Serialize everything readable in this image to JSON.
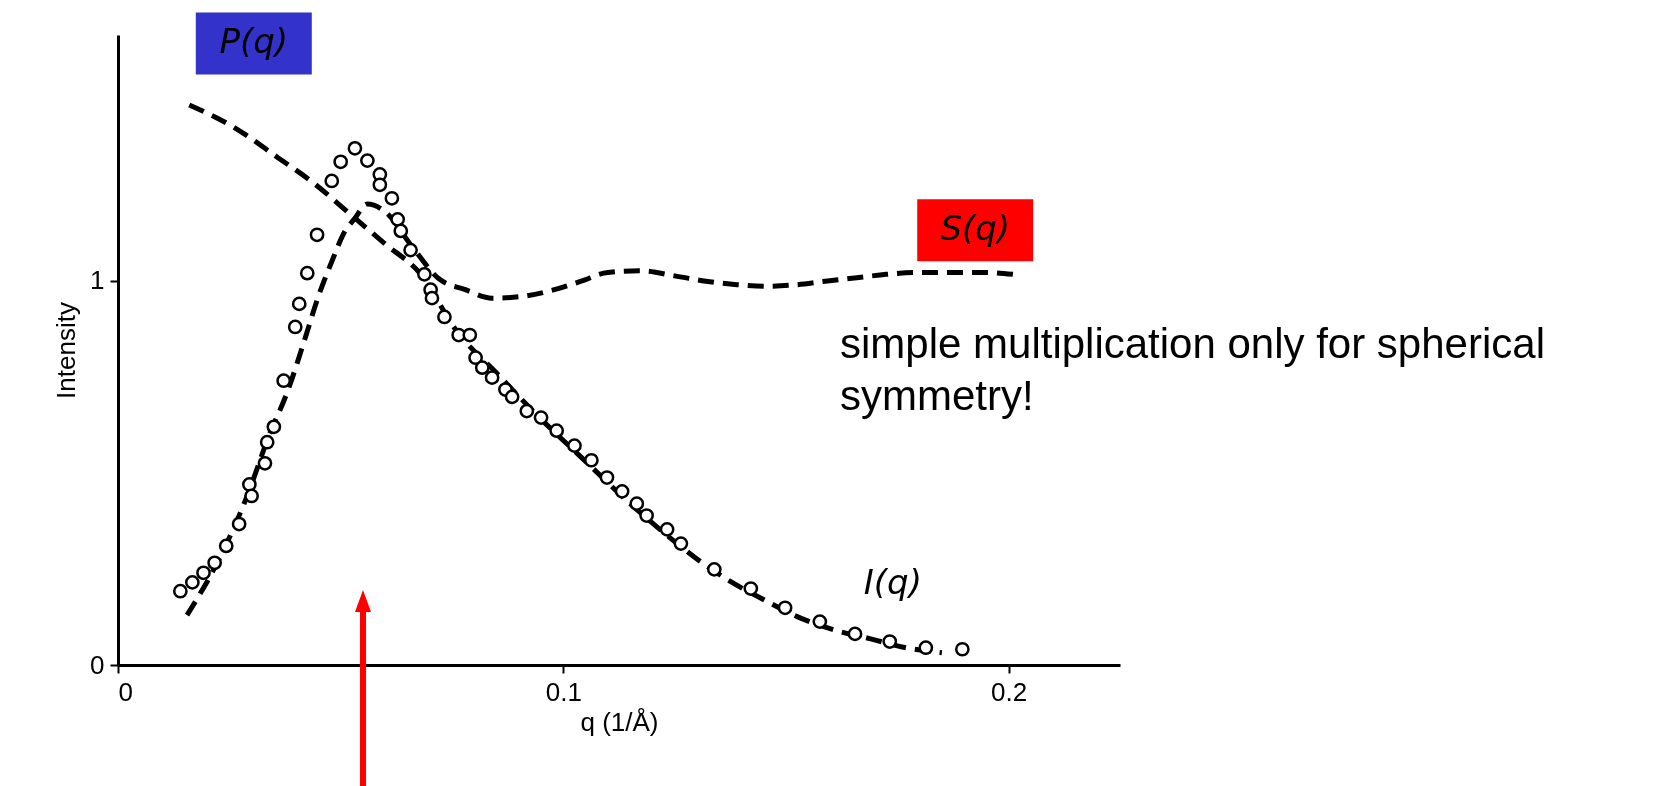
{
  "chart_data": {
    "type": "line",
    "xlabel": "q (1/Å)",
    "ylabel": "Intensity",
    "xlim": [
      0,
      0.225
    ],
    "ylim": [
      0,
      1.64
    ],
    "xticks": [
      0,
      0.1,
      0.2
    ],
    "yticks": [
      0,
      1
    ],
    "grid": false,
    "line_style": "dashed",
    "annotations": [
      "simple multiplication only for spherical symmetry!"
    ],
    "series": [
      {
        "name": "P(q)",
        "color": "#000000",
        "x": [
          0.016,
          0.026,
          0.036,
          0.044,
          0.052,
          0.06,
          0.068,
          0.076,
          0.085,
          0.095,
          0.105,
          0.115,
          0.122,
          0.13,
          0.1376,
          0.1455,
          0.1533,
          0.1612,
          0.169,
          0.1769,
          0.185
        ],
        "values": [
          1.458,
          1.4,
          1.32,
          1.254,
          1.175,
          1.096,
          1.017,
          0.87,
          0.76,
          0.64,
          0.53,
          0.42,
          0.35,
          0.276,
          0.217,
          0.167,
          0.122,
          0.09,
          0.068,
          0.045,
          0.032
        ]
      },
      {
        "name": "S(q)",
        "color": "#000000",
        "x": [
          0.0155,
          0.022,
          0.029,
          0.034,
          0.038,
          0.042,
          0.045,
          0.048,
          0.051,
          0.053,
          0.056,
          0.06,
          0.066,
          0.072,
          0.078,
          0.084,
          0.091,
          0.098,
          0.104,
          0.11,
          0.1176,
          0.125,
          0.132,
          0.139,
          0.1455,
          0.1525,
          0.1588,
          0.1659,
          0.1725,
          0.18,
          0.187,
          0.194,
          0.201
        ],
        "values": [
          0.13,
          0.26,
          0.44,
          0.6,
          0.71,
          0.85,
          0.96,
          1.05,
          1.13,
          1.16,
          1.2,
          1.18,
          1.09,
          1.006,
          0.977,
          0.955,
          0.96,
          0.977,
          0.999,
          1.022,
          1.026,
          1.013,
          0.999,
          0.99,
          0.986,
          0.99,
          0.999,
          1.008,
          1.017,
          1.022,
          1.022,
          1.022,
          1.017
        ]
      },
      {
        "name": "I(q)",
        "type": "scatter",
        "color": "#000000",
        "marker": "circle",
        "x": [
          0.014,
          0.0167,
          0.0192,
          0.0217,
          0.0243,
          0.0272,
          0.0295,
          0.03,
          0.033,
          0.0335,
          0.035,
          0.0372,
          0.0398,
          0.0407,
          0.0425,
          0.0447,
          0.048,
          0.05,
          0.0532,
          0.056,
          0.0588,
          0.0588,
          0.0615,
          0.0628,
          0.0635,
          0.0657,
          0.0688,
          0.0702,
          0.0705,
          0.0733,
          0.0765,
          0.079,
          0.0803,
          0.0818,
          0.084,
          0.087,
          0.0885,
          0.0918,
          0.095,
          0.0985,
          0.1025,
          0.1063,
          0.1098,
          0.1132,
          0.1165,
          0.1187,
          0.1233,
          0.1264,
          0.1339,
          0.1421,
          0.1498,
          0.1576,
          0.1655,
          0.1733,
          0.1814,
          0.1896
        ],
        "values": [
          0.192,
          0.215,
          0.24,
          0.266,
          0.31,
          0.367,
          0.47,
          0.44,
          0.525,
          0.58,
          0.62,
          0.74,
          0.88,
          0.94,
          1.02,
          1.12,
          1.26,
          1.31,
          1.345,
          1.313,
          1.277,
          1.25,
          1.215,
          1.16,
          1.13,
          1.08,
          1.017,
          0.977,
          0.955,
          0.906,
          0.859,
          0.859,
          0.8,
          0.774,
          0.748,
          0.717,
          0.698,
          0.661,
          0.644,
          0.61,
          0.571,
          0.533,
          0.488,
          0.452,
          0.42,
          0.389,
          0.353,
          0.316,
          0.249,
          0.199,
          0.149,
          0.113,
          0.081,
          0.061,
          0.045,
          0.041
        ]
      }
    ]
  }
}
